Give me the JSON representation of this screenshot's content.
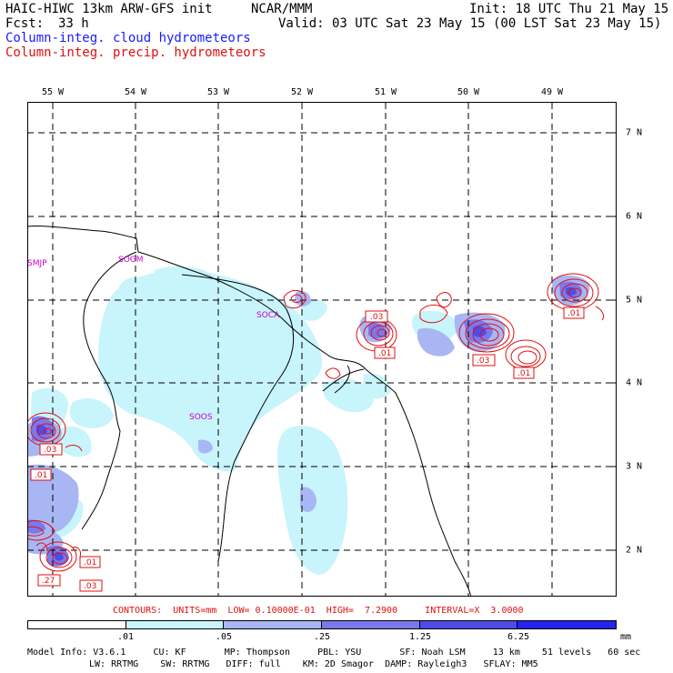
{
  "header": {
    "model": "HAIC-HIWC 13km ARW-GFS init",
    "org": "NCAR/MMM",
    "init": "Init: 18 UTC Thu 21 May 15",
    "fcst_label": "Fcst:",
    "fcst_value": "33 h",
    "valid": "Valid: 03 UTC Sat 23 May 15 (00 LST Sat 23 May 15)",
    "field_cloud": "Column-integ. cloud hydrometeors",
    "field_precip": "Column-integ. precip. hydrometeors"
  },
  "colors": {
    "cloud_text": "#1a1aff",
    "precip_text": "#e01010",
    "station_text": "#cc00cc",
    "shade_levels": [
      "#ffffff",
      "#c8f4fc",
      "#a8b6f4",
      "#7a78ec",
      "#4f4ce6",
      "#2424ee"
    ]
  },
  "longitude_labels": [
    "55 W",
    "54 W",
    "53 W",
    "52 W",
    "51 W",
    "50 W",
    "49 W"
  ],
  "latitude_labels": [
    "7 N",
    "6 N",
    "5 N",
    "4 N",
    "3 N",
    "2 N"
  ],
  "stations": [
    "SMJP",
    "SOGM",
    "SOCA",
    "SOOS"
  ],
  "contour_labels": [
    ".03",
    ".01",
    ".03",
    ".01",
    ".01",
    ".03",
    ".01",
    ".27",
    ".01",
    ".03"
  ],
  "contours_info": "CONTOURS:  UNITS=mm  LOW= 0.10000E-01  HIGH=  7.2900     INTERVAL=X  3.0000",
  "colorbar": {
    "labels": [
      ".01",
      ".05",
      ".25",
      "1.25",
      "6.25"
    ],
    "units": "mm"
  },
  "model_info": {
    "line1": "Model Info: V3.6.1     CU: KF       MP: Thompson     PBL: YSU       SF: Noah LSM     13 km    51 levels   60 sec",
    "line2": "LW: RRTMG    SW: RRTMG   DIFF: full    KM: 2D Smagor  DAMP: Rayleigh3   SFLAY: MM5"
  }
}
